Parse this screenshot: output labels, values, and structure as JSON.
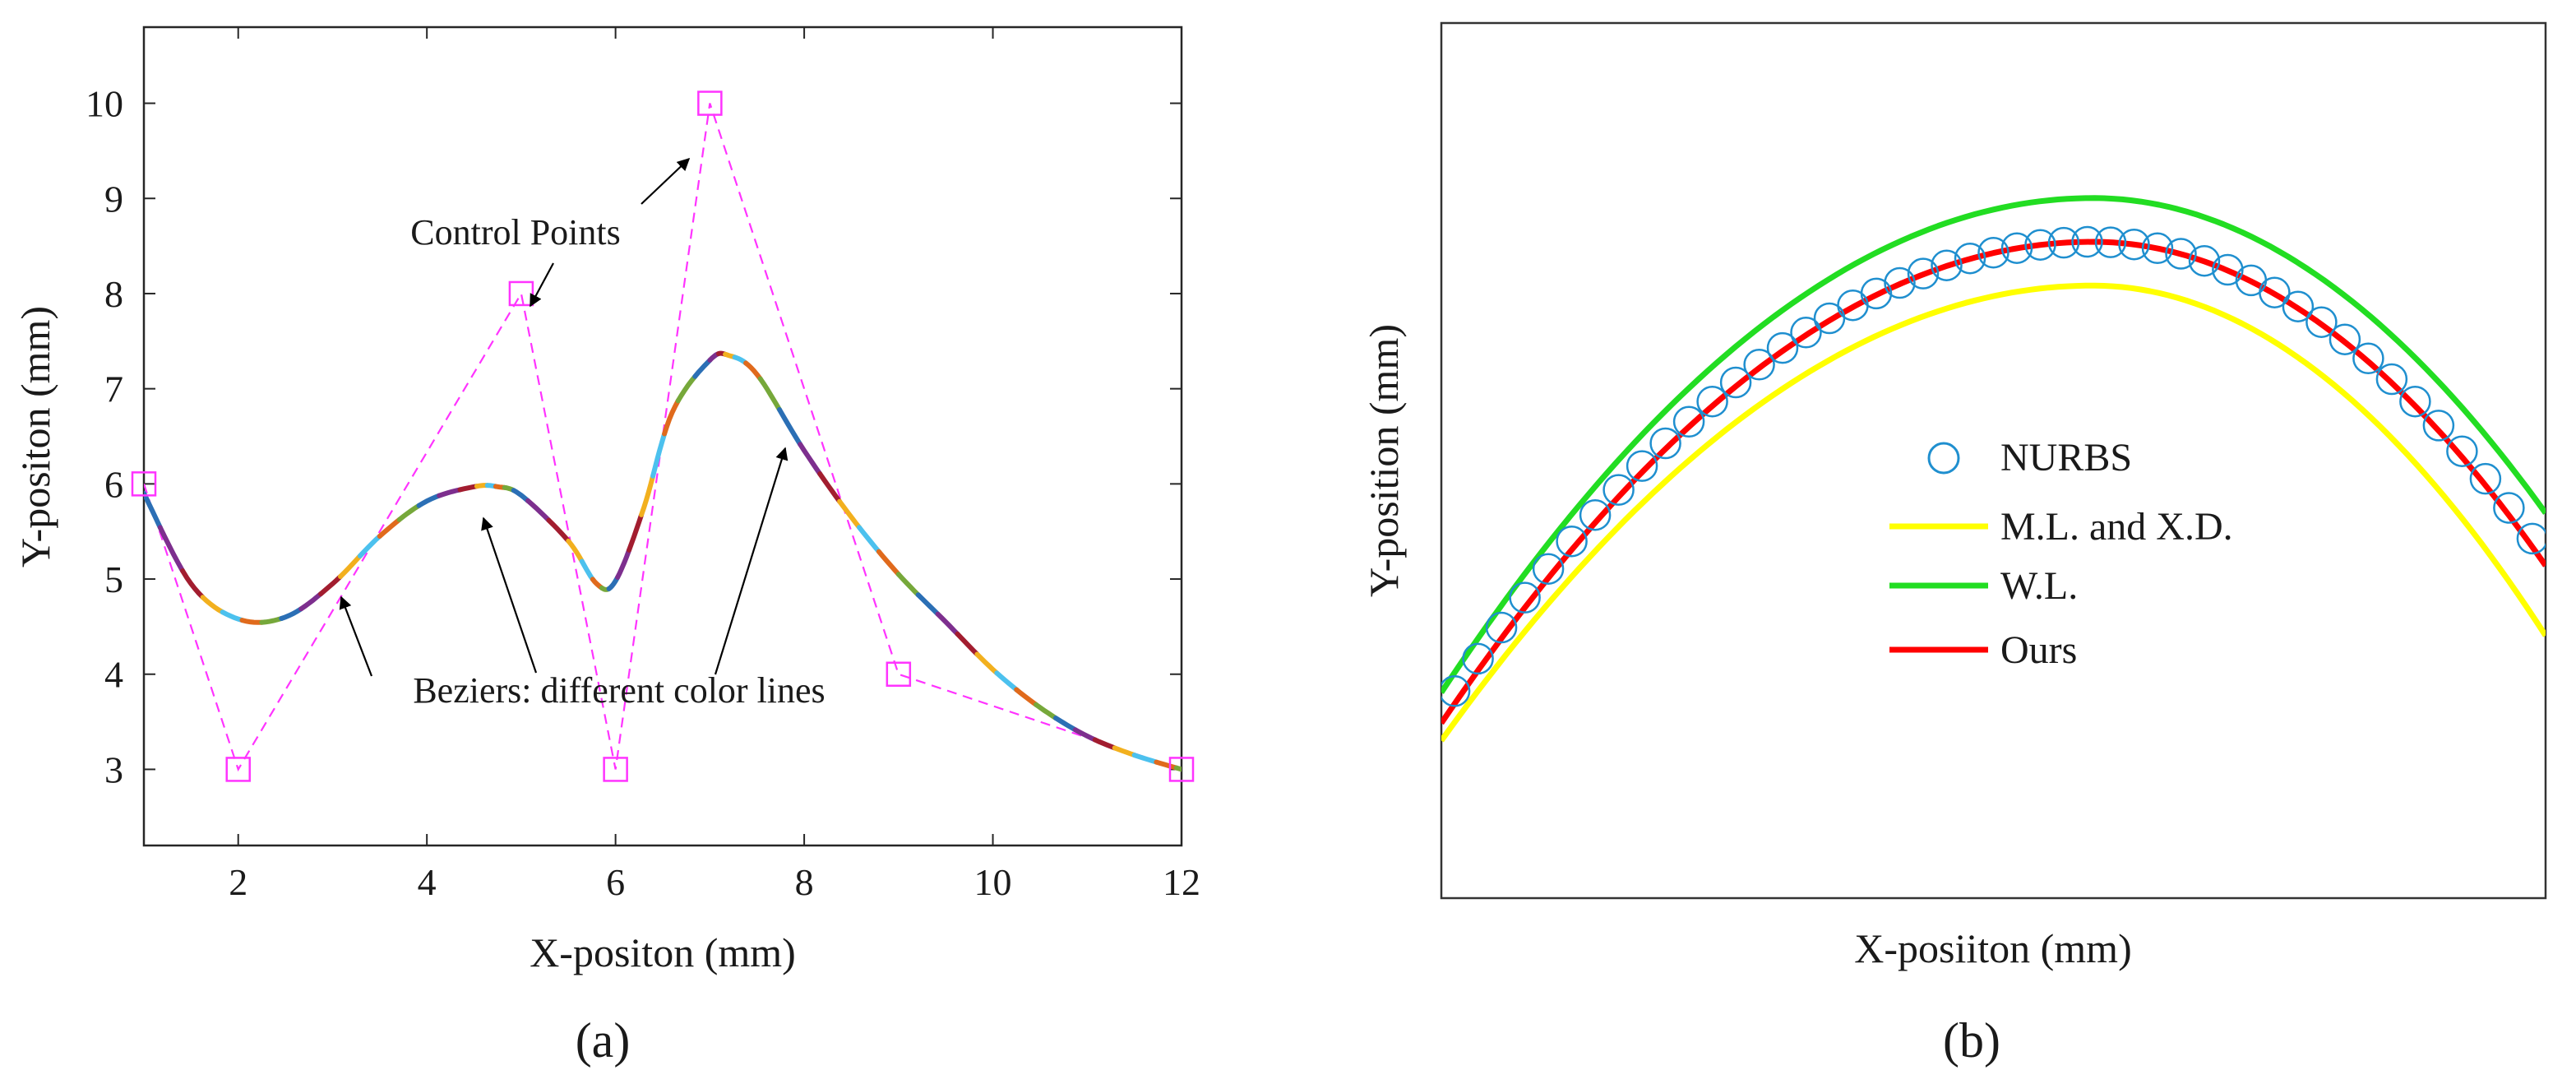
{
  "chart_data": [
    {
      "type": "line",
      "panel_label": "(a)",
      "xlabel": "X-positon (mm)",
      "ylabel": "Y-positon (mm)",
      "xlim": [
        1,
        12
      ],
      "ylim": [
        2.2,
        10.8
      ],
      "xticks": [
        2,
        4,
        6,
        8,
        10,
        12
      ],
      "yticks": [
        3,
        4,
        5,
        6,
        7,
        8,
        9,
        10
      ],
      "control_points": {
        "x": [
          1,
          2,
          5,
          6,
          7,
          9,
          12
        ],
        "y": [
          6,
          3,
          8,
          3,
          10,
          4,
          3
        ]
      },
      "curve": {
        "x": [
          1,
          1.5,
          2,
          2.5,
          3,
          3.5,
          4,
          4.5,
          4.75,
          5,
          5.5,
          5.8,
          6,
          6.3,
          6.6,
          7,
          7.2,
          7.5,
          8,
          8.5,
          9,
          9.5,
          10,
          10.5,
          11,
          11.5,
          12
        ],
        "y": [
          5.9,
          4.95,
          4.58,
          4.6,
          4.95,
          5.45,
          5.82,
          5.97,
          5.97,
          5.88,
          5.4,
          4.95,
          4.98,
          5.75,
          6.75,
          7.3,
          7.35,
          7.15,
          6.35,
          5.65,
          5.05,
          4.55,
          4.05,
          3.65,
          3.35,
          3.15,
          3.0
        ]
      },
      "annotations": [
        "Control Points",
        "Beziers: different color lines"
      ]
    },
    {
      "type": "line",
      "panel_label": "(b)",
      "xlabel": "X-posiiton (mm)",
      "ylabel": "Y-position (mm)",
      "xlim": [
        0,
        1
      ],
      "ylim": [
        0,
        1
      ],
      "legend_position": "center",
      "series": [
        {
          "name": "NURBS",
          "color": "#1f8fcf",
          "marker": "circle",
          "peak": [
            0.59,
            0.75
          ],
          "left_end": 0.215,
          "right_end": 0.39
        },
        {
          "name": "M.L. and X.D.",
          "color": "#ffff00",
          "peak": [
            0.59,
            0.7
          ],
          "left_end": 0.18,
          "right_end": 0.3
        },
        {
          "name": "W.L.",
          "color": "#22dd22",
          "peak": [
            0.59,
            0.8
          ],
          "left_end": 0.235,
          "right_end": 0.44
        },
        {
          "name": "Ours",
          "color": "#ff0000",
          "peak": [
            0.59,
            0.75
          ],
          "left_end": 0.2,
          "right_end": 0.38
        }
      ]
    }
  ],
  "colors": {
    "control_polygon": "#ff33ff",
    "bezier_segments": [
      "#2b6fb5",
      "#e06a1c",
      "#f2b01e",
      "#7d2f8e",
      "#76a83a",
      "#4cc1ee",
      "#a21d2f"
    ]
  }
}
